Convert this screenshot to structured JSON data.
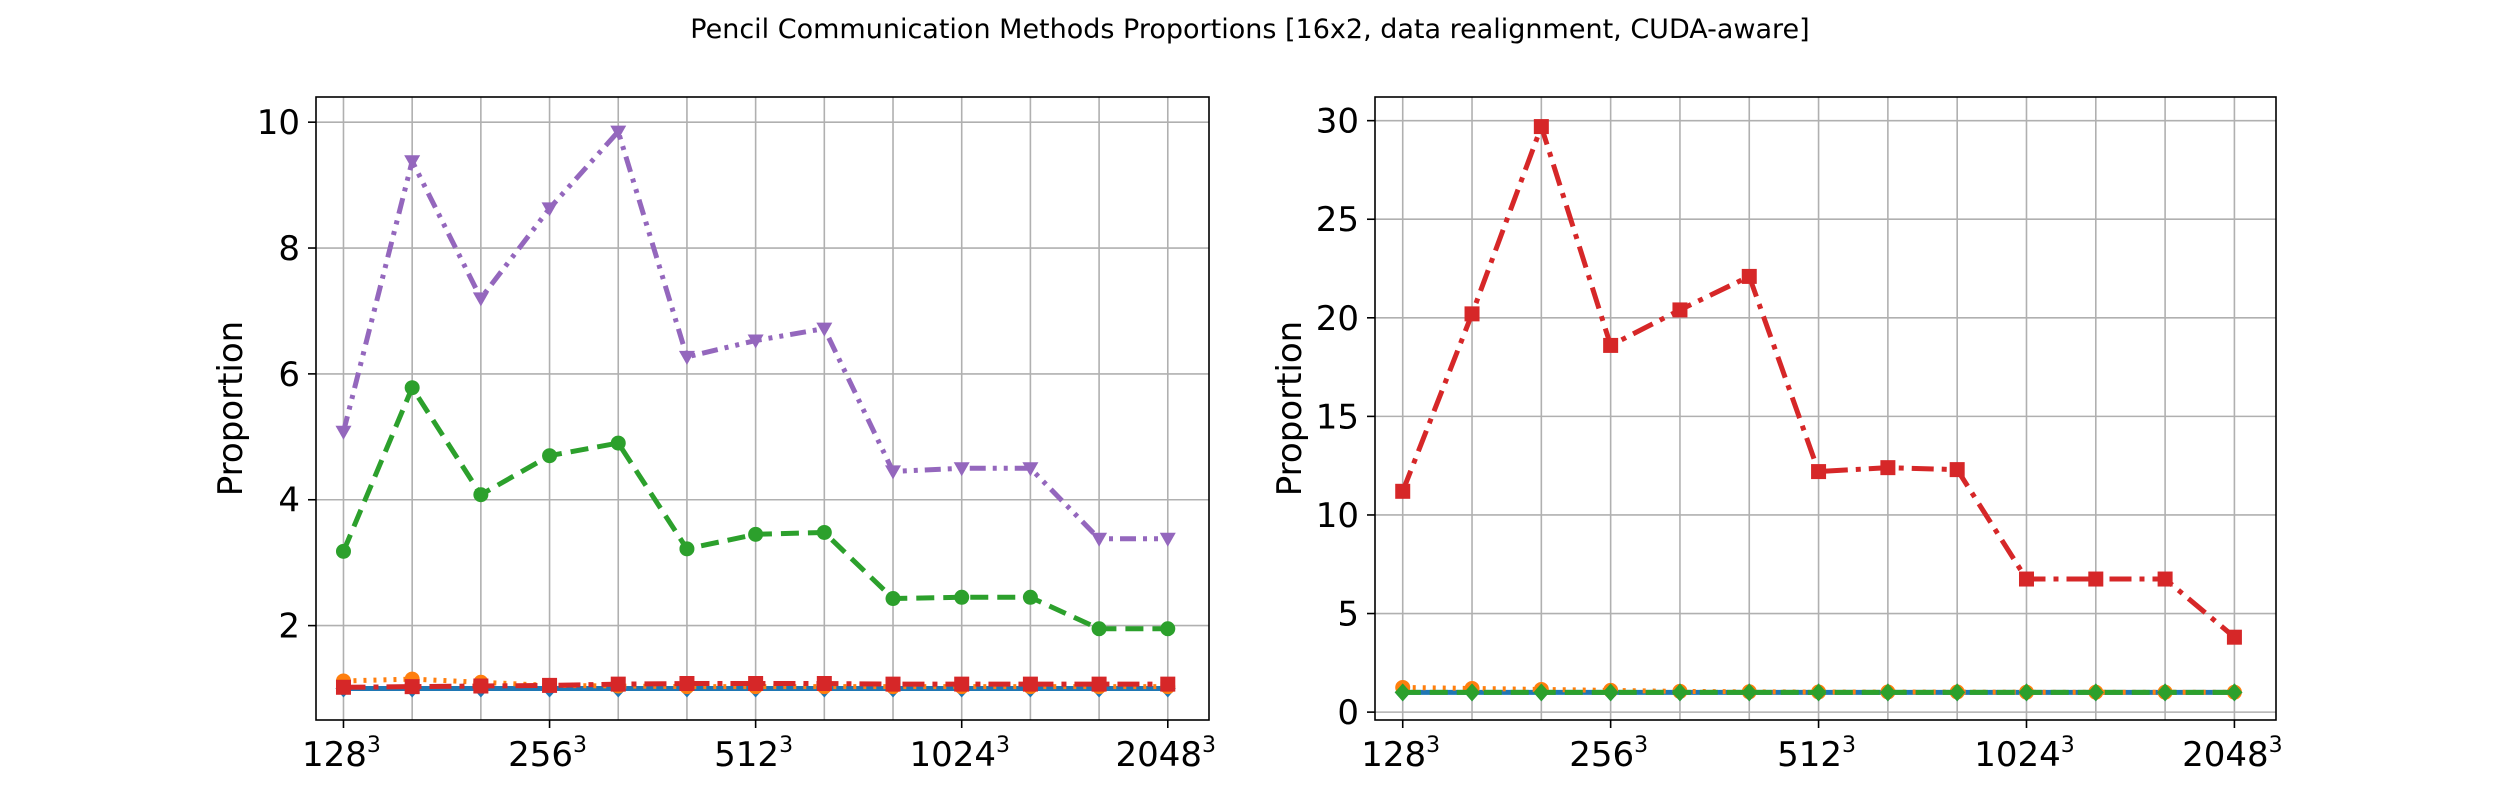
{
  "figure": {
    "title": "Pencil Communication Methods Proportions [16x2, data realignment, CUDA-aware]"
  },
  "colors": {
    "blue": "#1f77b4",
    "orange": "#ff7f0e",
    "green": "#2ca02c",
    "red": "#d62728",
    "purple": "#9467bd",
    "grid": "#b0b0b0"
  },
  "chart_data": [
    {
      "type": "line",
      "ylabel": "Proportion",
      "xlabel": "",
      "grid": true,
      "x": [
        1,
        2,
        3,
        4,
        5,
        6,
        7,
        8,
        9,
        10,
        11,
        12,
        13
      ],
      "xlim": [
        0.6,
        13.6
      ],
      "ylim": [
        0.5,
        10.4
      ],
      "xticks": [
        {
          "x": 1,
          "base": "128",
          "exp": "3"
        },
        {
          "x": 4,
          "base": "256",
          "exp": "3"
        },
        {
          "x": 7,
          "base": "512",
          "exp": "3"
        },
        {
          "x": 10,
          "base": "1024",
          "exp": "3"
        },
        {
          "x": 13,
          "base": "2048",
          "exp": "3"
        }
      ],
      "yticks": [
        2,
        4,
        6,
        8,
        10
      ],
      "series": [
        {
          "color": "#1f77b4",
          "dash": "solid",
          "marker": "diamond",
          "values": [
            1.0,
            1.0,
            1.0,
            1.0,
            1.0,
            1.0,
            1.0,
            1.0,
            1.0,
            1.0,
            1.0,
            1.0,
            1.0
          ]
        },
        {
          "color": "#ff7f0e",
          "dash": "dotted",
          "marker": "circle",
          "values": [
            1.12,
            1.15,
            1.1,
            1.05,
            1.04,
            1.03,
            1.03,
            1.03,
            1.03,
            1.03,
            1.03,
            1.03,
            1.03
          ]
        },
        {
          "color": "#2ca02c",
          "dash": "dashed",
          "marker": "circle",
          "values": [
            3.18,
            5.78,
            4.08,
            4.7,
            4.9,
            3.22,
            3.45,
            3.48,
            2.43,
            2.45,
            2.45,
            1.95,
            1.95
          ]
        },
        {
          "color": "#d62728",
          "dash": "dashdot",
          "marker": "square",
          "values": [
            1.02,
            1.03,
            1.04,
            1.05,
            1.07,
            1.08,
            1.08,
            1.08,
            1.07,
            1.07,
            1.07,
            1.07,
            1.07
          ]
        },
        {
          "color": "#9467bd",
          "dash": "dashdotdot",
          "marker": "triangle-down",
          "values": [
            5.08,
            9.38,
            7.2,
            8.63,
            9.85,
            6.27,
            6.53,
            6.72,
            4.45,
            4.5,
            4.5,
            3.38,
            3.38
          ]
        }
      ]
    },
    {
      "type": "line",
      "ylabel": "Proportion",
      "xlabel": "",
      "grid": true,
      "x": [
        1,
        2,
        3,
        4,
        5,
        6,
        7,
        8,
        9,
        10,
        11,
        12,
        13
      ],
      "xlim": [
        0.6,
        13.6
      ],
      "ylim": [
        -0.4,
        31.2
      ],
      "xticks": [
        {
          "x": 1,
          "base": "128",
          "exp": "3"
        },
        {
          "x": 4,
          "base": "256",
          "exp": "3"
        },
        {
          "x": 7,
          "base": "512",
          "exp": "3"
        },
        {
          "x": 10,
          "base": "1024",
          "exp": "3"
        },
        {
          "x": 13,
          "base": "2048",
          "exp": "3"
        }
      ],
      "yticks": [
        0,
        5,
        10,
        15,
        20,
        25,
        30
      ],
      "series": [
        {
          "color": "#1f77b4",
          "dash": "solid",
          "marker": "diamond",
          "values": [
            1.0,
            1.0,
            1.0,
            1.0,
            1.0,
            1.0,
            1.0,
            1.0,
            1.0,
            1.0,
            1.0,
            1.0,
            1.0
          ]
        },
        {
          "color": "#ff7f0e",
          "dash": "dotted",
          "marker": "circle",
          "values": [
            1.25,
            1.2,
            1.15,
            1.1,
            1.05,
            1.03,
            1.02,
            1.02,
            1.02,
            1.01,
            1.01,
            1.01,
            1.01
          ]
        },
        {
          "color": "#d62728",
          "dash": "dashdot",
          "marker": "square",
          "values": [
            11.2,
            20.2,
            29.7,
            18.6,
            20.4,
            22.1,
            12.2,
            12.4,
            12.3,
            6.75,
            6.75,
            6.75,
            3.8
          ]
        },
        {
          "color": "#2ca02c",
          "dash": "dashed",
          "marker": "diamond",
          "values": [
            1.0,
            1.0,
            1.0,
            1.0,
            1.0,
            1.0,
            1.0,
            1.0,
            1.0,
            1.0,
            1.0,
            1.0,
            1.0
          ]
        }
      ]
    }
  ]
}
